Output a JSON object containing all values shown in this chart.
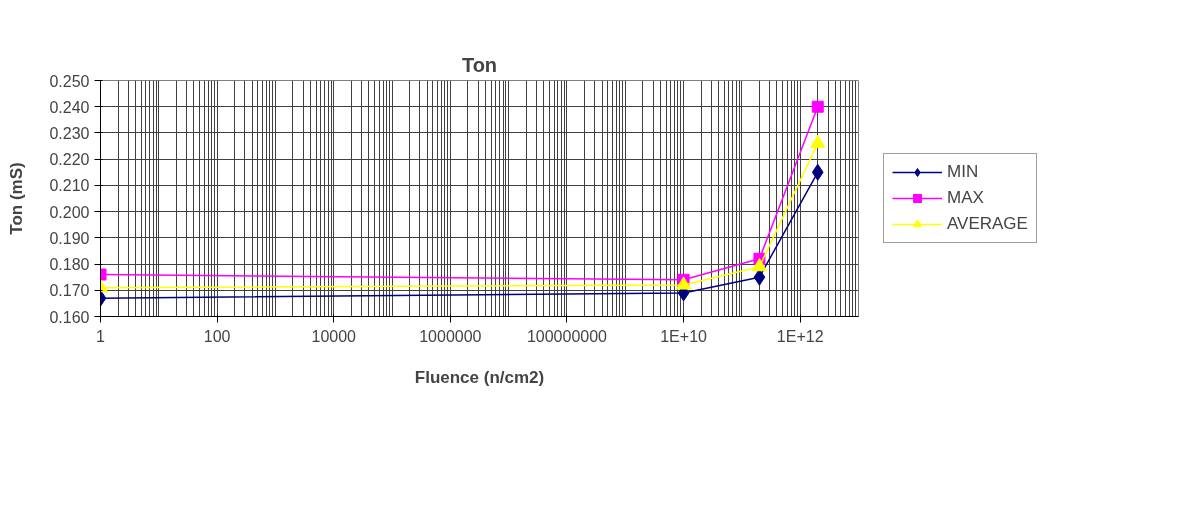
{
  "chart_data": {
    "type": "line",
    "title": "Ton",
    "xlabel": "Fluence (n/cm2)",
    "ylabel": "Ton (mS)",
    "log": "x",
    "grid": true,
    "legend": "right",
    "xlim": [
      1,
      10000000000000.0
    ],
    "xticks": [
      1,
      100,
      10000,
      1000000,
      100000000,
      {
        "value": 10000000000.0,
        "label": "1E+10"
      },
      {
        "value": 1000000000000.0,
        "label": "1E+12"
      }
    ],
    "ylim": [
      0.16,
      0.25
    ],
    "yticks": [
      {
        "value": 0.16,
        "label": "0.160"
      },
      {
        "value": 0.17,
        "label": "0.170"
      },
      {
        "value": 0.18,
        "label": "0.180"
      },
      {
        "value": 0.19,
        "label": "0.190"
      },
      {
        "value": 0.2,
        "label": "0.200"
      },
      {
        "value": 0.21,
        "label": "0.210"
      },
      {
        "value": 0.22,
        "label": "0.220"
      },
      {
        "value": 0.23,
        "label": "0.230"
      },
      {
        "value": 0.24,
        "label": "0.240"
      },
      {
        "value": 0.25,
        "label": "0.250"
      }
    ],
    "x": [
      1,
      10000000000.0,
      200000000000.0,
      2000000000000.0
    ],
    "series": [
      {
        "name": "MIN",
        "color": "#000080",
        "marker": "diamond",
        "values": [
          0.167,
          0.169,
          0.175,
          0.215
        ]
      },
      {
        "name": "MAX",
        "color": "#ff00ff",
        "marker": "square",
        "values": [
          0.176,
          0.174,
          0.182,
          0.24
        ]
      },
      {
        "name": "AVERAGE",
        "color": "#ffff00",
        "marker": "triangle",
        "values": [
          0.171,
          0.172,
          0.179,
          0.226
        ]
      }
    ]
  }
}
